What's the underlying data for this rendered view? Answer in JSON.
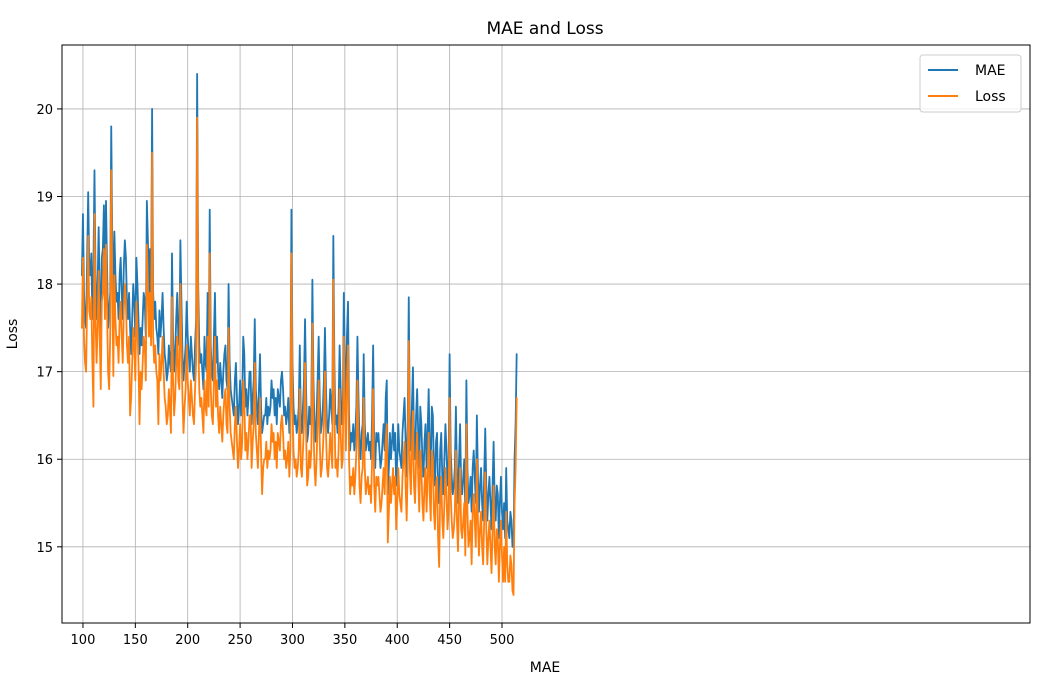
{
  "chart_data": {
    "type": "line",
    "title": "MAE and Loss",
    "xlabel": "MAE",
    "ylabel": "Loss",
    "xlim": [
      80,
      1004
    ],
    "ylim": [
      14.13,
      20.73
    ],
    "xticks": [
      100,
      150,
      200,
      250,
      300,
      350,
      400,
      450,
      500
    ],
    "yticks": [
      15,
      16,
      17,
      18,
      19,
      20
    ],
    "grid": true,
    "legend_position": "top-right",
    "x_start": 99,
    "series": [
      {
        "name": "MAE",
        "color": "#1f77b4",
        "values": [
          18.1,
          18.8,
          17.9,
          17.6,
          17.5,
          18.3,
          19.05,
          18.2,
          18.1,
          18.35,
          17.6,
          18.2,
          19.3,
          18.1,
          17.6,
          18.0,
          18.65,
          17.9,
          17.5,
          18.3,
          18.4,
          18.9,
          18.1,
          18.95,
          18.2,
          17.5,
          17.7,
          17.9,
          19.8,
          18.5,
          17.9,
          18.6,
          18.1,
          17.8,
          17.9,
          17.6,
          18.1,
          18.3,
          17.9,
          17.6,
          18.2,
          18.5,
          18.3,
          17.8,
          17.6,
          17.9,
          17.5,
          17.2,
          17.6,
          18.0,
          17.8,
          17.4,
          18.3,
          18.0,
          17.6,
          17.2,
          17.5,
          17.3,
          17.6,
          17.9,
          17.8,
          17.4,
          18.95,
          18.5,
          17.9,
          18.4,
          17.8,
          20.0,
          17.9,
          17.6,
          17.8,
          17.5,
          17.4,
          17.2,
          17.7,
          17.4,
          17.6,
          17.9,
          17.5,
          17.2,
          17.1,
          16.9,
          17.0,
          17.3,
          17.1,
          17.0,
          18.35,
          17.4,
          17.0,
          17.2,
          17.6,
          17.9,
          17.4,
          17.3,
          18.5,
          17.8,
          17.2,
          16.9,
          17.1,
          17.3,
          17.8,
          17.4,
          17.2,
          17.0,
          17.4,
          17.2,
          17.0,
          16.9,
          17.3,
          17.6,
          20.4,
          18.0,
          17.3,
          17.1,
          17.2,
          17.0,
          16.8,
          17.4,
          17.1,
          17.0,
          17.9,
          17.1,
          18.85,
          17.3,
          17.0,
          16.9,
          17.4,
          17.9,
          17.1,
          17.4,
          17.0,
          16.8,
          17.1,
          16.9,
          16.7,
          17.0,
          17.2,
          17.3,
          16.9,
          16.8,
          18.0,
          17.1,
          16.8,
          16.7,
          16.6,
          16.5,
          16.9,
          17.1,
          16.7,
          16.4,
          16.6,
          16.9,
          16.5,
          16.7,
          17.4,
          17.2,
          16.6,
          16.8,
          16.5,
          16.7,
          17.0,
          17.0,
          16.4,
          16.7,
          16.9,
          17.6,
          16.8,
          16.6,
          16.4,
          16.8,
          17.2,
          16.6,
          16.3,
          16.4,
          16.5,
          16.5,
          16.7,
          16.4,
          16.6,
          16.5,
          16.6,
          16.9,
          16.7,
          16.8,
          16.5,
          16.7,
          16.4,
          16.8,
          16.7,
          16.6,
          16.9,
          17.0,
          16.8,
          16.5,
          16.6,
          16.4,
          16.5,
          16.7,
          16.3,
          16.6,
          18.85,
          17.1,
          16.6,
          16.4,
          16.5,
          16.3,
          16.4,
          16.6,
          17.3,
          16.4,
          16.3,
          16.6,
          16.9,
          17.6,
          16.8,
          16.2,
          16.3,
          16.6,
          16.4,
          16.6,
          18.05,
          16.9,
          16.4,
          16.2,
          16.5,
          16.9,
          17.4,
          16.7,
          16.3,
          16.4,
          16.6,
          16.9,
          17.5,
          16.8,
          16.4,
          16.3,
          16.5,
          16.8,
          16.6,
          16.4,
          18.55,
          17.1,
          16.4,
          16.5,
          16.3,
          16.6,
          17.3,
          16.8,
          16.4,
          16.5,
          17.9,
          17.1,
          16.6,
          17.4,
          17.8,
          16.5,
          16.1,
          16.3,
          16.2,
          16.4,
          16.1,
          16.3,
          16.6,
          17.4,
          16.7,
          16.2,
          16.0,
          16.3,
          16.4,
          17.2,
          16.4,
          16.1,
          16.2,
          16.3,
          16.1,
          16.2,
          16.0,
          16.5,
          17.3,
          16.2,
          15.9,
          16.3,
          16.2,
          16.3,
          16.1,
          15.9,
          16.0,
          16.2,
          16.4,
          16.1,
          16.7,
          16.9,
          15.6,
          15.9,
          16.3,
          16.0,
          16.2,
          16.4,
          16.1,
          16.3,
          15.7,
          16.0,
          16.4,
          16.1,
          16.0,
          15.9,
          16.3,
          16.5,
          16.7,
          16.2,
          15.8,
          16.4,
          17.85,
          16.4,
          16.1,
          16.6,
          17.05,
          16.2,
          16.0,
          16.5,
          16.8,
          16.3,
          15.9,
          16.6,
          16.4,
          16.0,
          15.8,
          16.2,
          16.4,
          15.9,
          16.3,
          16.8,
          16.1,
          15.8,
          16.6,
          16.5,
          15.9,
          15.7,
          16.2,
          16.3,
          15.6,
          15.5,
          16.1,
          16.3,
          15.8,
          15.6,
          16.0,
          16.4,
          16.1,
          15.7,
          15.9,
          17.2,
          16.1,
          15.8,
          15.6,
          15.7,
          15.9,
          16.6,
          15.8,
          15.5,
          16.0,
          16.4,
          15.7,
          15.6,
          15.8,
          16.0,
          15.4,
          16.9,
          15.9,
          15.5,
          15.6,
          15.8,
          15.4,
          15.9,
          16.1,
          15.8,
          15.5,
          16.5,
          15.8,
          15.4,
          15.7,
          15.9,
          15.5,
          15.3,
          15.8,
          16.35,
          15.7,
          15.3,
          15.6,
          15.8,
          15.5,
          15.2,
          15.7,
          16.2,
          15.5,
          15.3,
          15.7,
          15.6,
          15.1,
          15.5,
          15.8,
          15.4,
          15.2,
          15.5,
          15.1,
          15.9,
          15.3,
          15.2,
          15.1,
          15.4,
          15.3,
          15.0,
          15.0,
          16.0,
          16.4,
          17.2
        ]
      },
      {
        "name": "Loss",
        "color": "#ff7f0e",
        "values": [
          17.5,
          18.3,
          17.4,
          17.1,
          17.0,
          17.8,
          18.55,
          17.7,
          17.6,
          17.85,
          17.1,
          16.6,
          18.8,
          17.6,
          17.1,
          17.5,
          18.15,
          17.4,
          16.8,
          17.8,
          17.9,
          18.4,
          17.6,
          18.45,
          17.7,
          17.0,
          16.8,
          17.4,
          19.3,
          18.0,
          16.95,
          18.1,
          17.6,
          17.3,
          17.4,
          17.1,
          17.6,
          17.8,
          17.4,
          17.1,
          17.7,
          18.0,
          17.8,
          17.3,
          17.1,
          17.4,
          16.5,
          16.7,
          17.1,
          17.5,
          17.3,
          16.9,
          17.8,
          17.5,
          17.1,
          16.4,
          17.0,
          16.8,
          17.1,
          17.4,
          17.3,
          16.9,
          18.45,
          18.0,
          17.4,
          17.9,
          17.3,
          19.5,
          17.4,
          17.1,
          17.3,
          17.0,
          16.9,
          16.4,
          17.2,
          16.9,
          17.1,
          17.4,
          17.0,
          16.7,
          16.6,
          16.4,
          16.5,
          16.8,
          16.6,
          16.3,
          17.85,
          16.9,
          16.5,
          16.7,
          17.1,
          17.4,
          16.9,
          16.8,
          18.0,
          17.3,
          16.7,
          16.3,
          16.6,
          16.8,
          17.3,
          16.9,
          16.7,
          16.5,
          16.9,
          16.7,
          16.5,
          16.4,
          16.8,
          17.1,
          19.9,
          17.5,
          16.8,
          16.6,
          16.7,
          16.5,
          16.3,
          16.9,
          16.6,
          16.5,
          17.4,
          16.6,
          18.35,
          16.8,
          16.5,
          16.4,
          16.9,
          17.4,
          16.6,
          16.9,
          16.5,
          16.3,
          16.6,
          16.4,
          16.2,
          16.5,
          16.7,
          16.8,
          16.4,
          16.3,
          17.5,
          16.6,
          16.3,
          16.2,
          16.1,
          16.0,
          16.4,
          16.6,
          16.2,
          15.9,
          16.1,
          16.4,
          16.0,
          16.2,
          16.9,
          16.7,
          16.1,
          16.3,
          16.0,
          16.2,
          16.5,
          16.5,
          15.9,
          16.2,
          16.4,
          17.1,
          16.3,
          16.1,
          15.9,
          16.3,
          16.7,
          16.1,
          15.6,
          15.9,
          16.0,
          16.0,
          16.2,
          15.9,
          16.1,
          16.0,
          16.1,
          16.4,
          16.2,
          16.3,
          16.0,
          16.2,
          15.9,
          16.3,
          16.2,
          16.1,
          16.4,
          16.5,
          16.3,
          16.0,
          16.1,
          15.9,
          16.0,
          16.2,
          15.8,
          16.1,
          18.35,
          16.6,
          16.1,
          15.9,
          16.0,
          15.8,
          15.9,
          16.1,
          16.8,
          15.9,
          15.8,
          16.1,
          16.4,
          17.1,
          16.3,
          15.7,
          15.8,
          16.1,
          15.9,
          16.1,
          17.55,
          16.4,
          15.9,
          15.7,
          16.0,
          16.4,
          16.9,
          16.2,
          15.8,
          15.9,
          16.1,
          16.4,
          17.0,
          16.3,
          15.9,
          15.8,
          16.0,
          16.3,
          16.1,
          15.9,
          18.05,
          16.6,
          15.9,
          16.0,
          15.8,
          16.1,
          16.8,
          16.3,
          15.9,
          16.0,
          17.4,
          16.6,
          16.1,
          16.9,
          17.3,
          16.0,
          15.6,
          15.8,
          15.7,
          15.9,
          15.6,
          15.8,
          16.1,
          16.9,
          16.2,
          15.7,
          15.5,
          15.8,
          15.9,
          16.7,
          15.9,
          15.6,
          15.7,
          15.8,
          15.6,
          15.7,
          15.5,
          16.0,
          16.8,
          15.7,
          15.4,
          15.8,
          15.7,
          15.8,
          15.6,
          15.4,
          15.5,
          15.7,
          15.9,
          15.6,
          16.2,
          16.4,
          15.05,
          15.4,
          15.8,
          15.5,
          15.7,
          15.9,
          15.6,
          15.8,
          15.2,
          15.5,
          15.9,
          15.6,
          15.5,
          15.4,
          15.8,
          16.0,
          16.2,
          15.7,
          15.3,
          15.9,
          17.35,
          15.9,
          15.6,
          16.1,
          16.55,
          15.7,
          15.5,
          16.0,
          16.3,
          15.8,
          15.4,
          16.1,
          15.9,
          15.5,
          15.3,
          15.7,
          15.9,
          15.4,
          15.8,
          16.3,
          15.6,
          15.3,
          16.1,
          16.0,
          15.4,
          15.2,
          15.7,
          15.8,
          15.1,
          14.77,
          15.6,
          15.8,
          15.3,
          15.1,
          15.5,
          15.9,
          15.6,
          15.2,
          15.4,
          16.7,
          15.6,
          15.3,
          15.1,
          15.2,
          15.4,
          16.1,
          15.3,
          14.95,
          15.5,
          15.9,
          15.2,
          15.1,
          15.3,
          15.5,
          14.9,
          16.4,
          15.4,
          15.0,
          15.1,
          15.3,
          14.8,
          15.4,
          15.6,
          15.3,
          15.0,
          16.0,
          15.3,
          14.9,
          15.2,
          15.4,
          15.0,
          14.8,
          15.3,
          15.85,
          15.2,
          14.8,
          15.1,
          15.3,
          15.0,
          14.7,
          15.2,
          15.7,
          15.0,
          14.8,
          15.2,
          15.1,
          14.6,
          15.0,
          15.3,
          14.9,
          14.6,
          15.0,
          14.6,
          15.4,
          14.8,
          14.6,
          14.6,
          14.9,
          14.8,
          14.5,
          14.45,
          15.5,
          15.9,
          16.7
        ]
      }
    ]
  }
}
